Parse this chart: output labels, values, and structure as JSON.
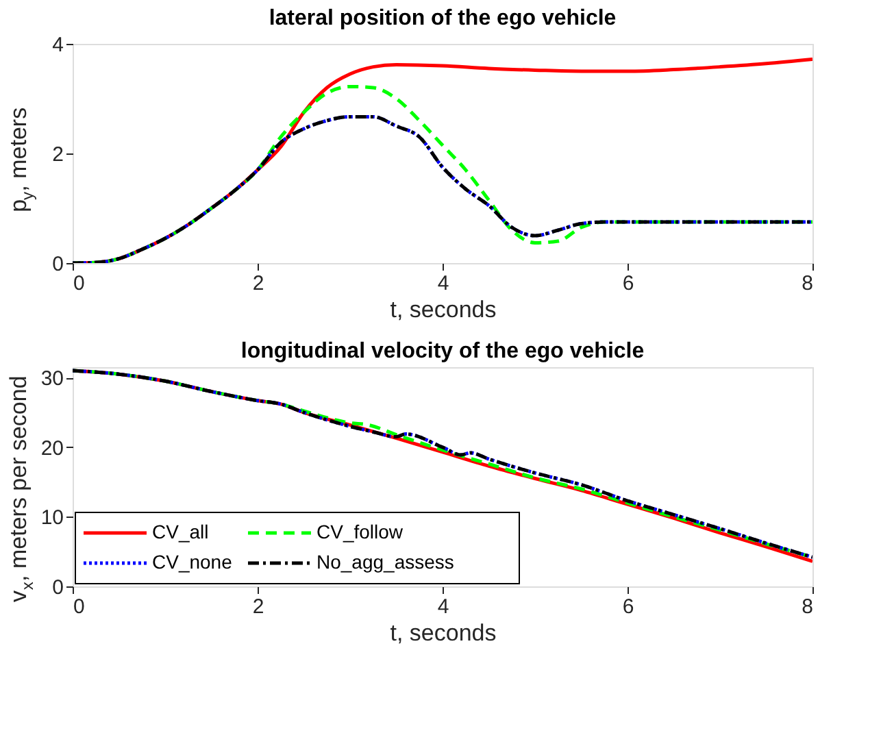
{
  "chart_data": [
    {
      "type": "line",
      "title": "lateral position of the ego vehicle",
      "xlabel": "t, seconds",
      "ylabel": "p$_{y}$, meters",
      "xlim": [
        0,
        8
      ],
      "xticks": [
        0,
        2,
        4,
        6,
        8
      ],
      "ylim": [
        0,
        4
      ],
      "yticks": [
        0,
        2,
        4
      ],
      "grid": false,
      "legend": false,
      "series": [
        {
          "color": "#ff0000",
          "line_style": "solid",
          "x": [
            0,
            0.25,
            0.5,
            0.75,
            1,
            1.25,
            1.5,
            1.75,
            2,
            2.25,
            2.5,
            2.75,
            3,
            3.25,
            3.5,
            4,
            4.5,
            5,
            5.5,
            6,
            6.5,
            7,
            7.5,
            8
          ],
          "values": [
            0,
            0.01,
            0.08,
            0.25,
            0.45,
            0.7,
            1.0,
            1.32,
            1.7,
            2.12,
            2.75,
            3.2,
            3.45,
            3.58,
            3.62,
            3.6,
            3.55,
            3.52,
            3.5,
            3.5,
            3.53,
            3.58,
            3.64,
            3.72
          ]
        },
        {
          "color": "#00ff00",
          "line_style": "dashed",
          "x": [
            0,
            0.25,
            0.5,
            0.75,
            1,
            1.25,
            1.5,
            1.75,
            2,
            2.25,
            2.5,
            2.75,
            3,
            3.25,
            3.5,
            3.75,
            4,
            4.25,
            4.5,
            4.75,
            5,
            5.25,
            5.5,
            5.75,
            6,
            7,
            8
          ],
          "values": [
            0,
            0.01,
            0.08,
            0.25,
            0.45,
            0.7,
            1.0,
            1.32,
            1.7,
            2.3,
            2.75,
            3.1,
            3.22,
            3.2,
            3.0,
            2.6,
            2.15,
            1.7,
            1.15,
            0.6,
            0.37,
            0.4,
            0.65,
            0.75,
            0.75,
            0.75,
            0.75
          ]
        },
        {
          "color": "#0000ff",
          "line_style": "dotted",
          "x": [
            0,
            0.25,
            0.5,
            0.75,
            1,
            1.25,
            1.5,
            1.75,
            2,
            2.25,
            2.5,
            2.75,
            3,
            3.25,
            3.5,
            3.75,
            4,
            4.25,
            4.5,
            4.75,
            5,
            5.25,
            5.5,
            5.75,
            6,
            7,
            8
          ],
          "values": [
            0,
            0.01,
            0.08,
            0.25,
            0.45,
            0.7,
            1.0,
            1.32,
            1.7,
            2.2,
            2.45,
            2.6,
            2.67,
            2.67,
            2.5,
            2.3,
            1.75,
            1.35,
            1.05,
            0.65,
            0.5,
            0.6,
            0.72,
            0.75,
            0.75,
            0.75,
            0.75
          ]
        },
        {
          "color": "#000000",
          "line_style": "dashdot",
          "x": [
            0,
            0.25,
            0.5,
            0.75,
            1,
            1.25,
            1.5,
            1.75,
            2,
            2.25,
            2.5,
            2.75,
            3,
            3.25,
            3.5,
            3.75,
            4,
            4.25,
            4.5,
            4.75,
            5,
            5.25,
            5.5,
            5.75,
            6,
            7,
            8
          ],
          "values": [
            0,
            0.01,
            0.08,
            0.25,
            0.45,
            0.7,
            1.0,
            1.32,
            1.7,
            2.2,
            2.45,
            2.6,
            2.67,
            2.67,
            2.5,
            2.3,
            1.75,
            1.35,
            1.05,
            0.65,
            0.5,
            0.6,
            0.72,
            0.75,
            0.75,
            0.75,
            0.75
          ]
        }
      ]
    },
    {
      "type": "line",
      "title": "longitudinal velocity of the ego vehicle",
      "xlabel": "t, seconds",
      "ylabel": "v$_{x}$, meters per second",
      "xlim": [
        0,
        8
      ],
      "xticks": [
        0,
        2,
        4,
        6,
        8
      ],
      "ylim": [
        0,
        31.5
      ],
      "yticks": [
        0,
        10,
        20,
        30
      ],
      "grid": false,
      "legend": "bottom left",
      "series": [
        {
          "name": "CV_all",
          "color": "#ff0000",
          "line_style": "solid",
          "x": [
            0,
            0.5,
            1,
            1.5,
            2,
            2.25,
            2.5,
            3,
            3.5,
            4,
            4.5,
            5,
            5.5,
            6,
            6.5,
            7,
            7.5,
            8
          ],
          "values": [
            31,
            30.5,
            29.5,
            28,
            26.7,
            26.2,
            25,
            23.2,
            21.3,
            19.3,
            17.3,
            15.5,
            13.8,
            11.8,
            9.8,
            7.7,
            5.7,
            3.6
          ]
        },
        {
          "name": "CV_follow",
          "color": "#00ff00",
          "line_style": "dashed",
          "x": [
            0,
            0.5,
            1,
            1.5,
            2,
            2.25,
            2.5,
            3,
            3.2,
            3.5,
            4,
            4.5,
            5,
            5.5,
            6,
            6.5,
            7,
            7.5,
            8
          ],
          "values": [
            31,
            30.5,
            29.5,
            28,
            26.7,
            26.2,
            25.2,
            23.5,
            23.2,
            21.8,
            19.6,
            17.6,
            15.6,
            14.0,
            12.0,
            10.0,
            8.1,
            6.1,
            4.2
          ]
        },
        {
          "name": "CV_none",
          "color": "#0000ff",
          "line_style": "dotted",
          "x": [
            0,
            0.5,
            1,
            1.5,
            2,
            2.25,
            2.5,
            3,
            3.25,
            3.5,
            3.6,
            4,
            4.2,
            4.3,
            4.5,
            5,
            5.5,
            6,
            6.5,
            7,
            7.5,
            8
          ],
          "values": [
            31,
            30.5,
            29.5,
            28,
            26.7,
            26.2,
            25,
            23,
            22.2,
            21.5,
            21.9,
            20,
            18.9,
            19.2,
            18.3,
            16.3,
            14.6,
            12.3,
            10.3,
            8.3,
            6.2,
            4.2
          ]
        },
        {
          "name": "No_agg_assess",
          "color": "#000000",
          "line_style": "dashdot",
          "x": [
            0,
            0.5,
            1,
            1.5,
            2,
            2.25,
            2.5,
            3,
            3.25,
            3.5,
            3.6,
            4,
            4.2,
            4.3,
            4.5,
            5,
            5.5,
            6,
            6.5,
            7,
            7.5,
            8
          ],
          "values": [
            31,
            30.5,
            29.5,
            28,
            26.7,
            26.2,
            25,
            23,
            22.2,
            21.5,
            21.9,
            20,
            18.9,
            19.2,
            18.3,
            16.3,
            14.6,
            12.3,
            10.3,
            8.3,
            6.2,
            4.2
          ]
        }
      ]
    }
  ]
}
